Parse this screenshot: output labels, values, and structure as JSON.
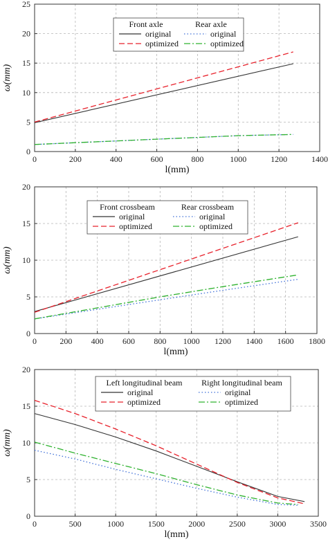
{
  "chart_data": [
    {
      "type": "line",
      "xlabel": "l(mm)",
      "ylabel": "ω(mm)",
      "xlim": [
        0,
        1400
      ],
      "ylim": [
        0,
        25
      ],
      "xticks": [
        0,
        200,
        400,
        600,
        800,
        1000,
        1200,
        1400
      ],
      "yticks": [
        0,
        5,
        10,
        15,
        20,
        25
      ],
      "grid": true,
      "legend": {
        "position": "top-center",
        "groups": [
          "Front axle",
          "Rear axle"
        ]
      },
      "series": [
        {
          "group": "Front axle",
          "name": "original",
          "style": "solid",
          "color": "#333333",
          "x": [
            0,
            1270
          ],
          "y": [
            4.9,
            14.9
          ]
        },
        {
          "group": "Front axle",
          "name": "optimized",
          "style": "dashed",
          "color": "#e8212b",
          "x": [
            0,
            1270
          ],
          "y": [
            5.0,
            16.9
          ]
        },
        {
          "group": "Rear axle",
          "name": "original",
          "style": "dotted",
          "color": "#3f6fd8",
          "x": [
            0,
            200,
            400,
            600,
            800,
            1000,
            1270
          ],
          "y": [
            1.2,
            1.5,
            1.8,
            2.1,
            2.4,
            2.7,
            2.9
          ]
        },
        {
          "group": "Rear axle",
          "name": "optimized",
          "style": "dashdot",
          "color": "#2fb22f",
          "x": [
            0,
            200,
            400,
            600,
            800,
            1000,
            1270
          ],
          "y": [
            1.2,
            1.5,
            1.8,
            2.1,
            2.4,
            2.7,
            2.9
          ]
        }
      ]
    },
    {
      "type": "line",
      "xlabel": "l(mm)",
      "ylabel": "ω(mm)",
      "xlim": [
        0,
        1800
      ],
      "ylim": [
        0,
        20
      ],
      "xticks": [
        0,
        200,
        400,
        600,
        800,
        1000,
        1200,
        1400,
        1600,
        1800
      ],
      "yticks": [
        0,
        5,
        10,
        15,
        20
      ],
      "grid": true,
      "legend": {
        "position": "top-left",
        "groups": [
          "Front crossbeam",
          "Rear crossbeam"
        ]
      },
      "series": [
        {
          "group": "Front crossbeam",
          "name": "original",
          "style": "solid",
          "color": "#333333",
          "x": [
            0,
            1680
          ],
          "y": [
            3.0,
            13.2
          ]
        },
        {
          "group": "Front crossbeam",
          "name": "optimized",
          "style": "dashed",
          "color": "#e8212b",
          "x": [
            0,
            1680
          ],
          "y": [
            2.9,
            15.1
          ]
        },
        {
          "group": "Rear crossbeam",
          "name": "original",
          "style": "dotted",
          "color": "#3f6fd8",
          "x": [
            0,
            400,
            800,
            1200,
            1680
          ],
          "y": [
            2.0,
            3.3,
            4.6,
            5.9,
            7.4
          ]
        },
        {
          "group": "Rear crossbeam",
          "name": "optimized",
          "style": "dashdot",
          "color": "#2fb22f",
          "x": [
            0,
            400,
            800,
            1200,
            1680
          ],
          "y": [
            2.0,
            3.5,
            5.0,
            6.4,
            8.0
          ]
        }
      ]
    },
    {
      "type": "line",
      "xlabel": "l(mm)",
      "ylabel": "ω(mm)",
      "xlim": [
        0,
        3500
      ],
      "ylim": [
        0,
        20
      ],
      "xticks": [
        0,
        500,
        1000,
        1500,
        2000,
        2500,
        3000,
        3500
      ],
      "yticks": [
        0,
        5,
        10,
        15,
        20
      ],
      "grid": true,
      "legend": {
        "position": "top-right",
        "groups": [
          "Left longitudinal beam",
          "Right longitudinal beam"
        ]
      },
      "series": [
        {
          "group": "Left longitudinal beam",
          "name": "original",
          "style": "solid",
          "color": "#333333",
          "x": [
            0,
            500,
            1000,
            1500,
            2000,
            2500,
            3000,
            3330
          ],
          "y": [
            14.0,
            12.5,
            10.8,
            8.9,
            6.8,
            4.7,
            2.7,
            2.0
          ]
        },
        {
          "group": "Left longitudinal beam",
          "name": "optimized",
          "style": "dashed",
          "color": "#e8212b",
          "x": [
            0,
            500,
            1000,
            1500,
            2000,
            2500,
            3000,
            3330
          ],
          "y": [
            15.8,
            14.0,
            11.9,
            9.6,
            7.1,
            4.6,
            2.5,
            1.7
          ]
        },
        {
          "group": "Right longitudinal beam",
          "name": "original",
          "style": "dotted",
          "color": "#3f6fd8",
          "x": [
            0,
            500,
            1000,
            1500,
            2000,
            2500,
            3000,
            3250
          ],
          "y": [
            9.0,
            7.8,
            6.4,
            5.1,
            3.8,
            2.6,
            1.6,
            1.5
          ]
        },
        {
          "group": "Right longitudinal beam",
          "name": "optimized",
          "style": "dashdot",
          "color": "#2fb22f",
          "x": [
            0,
            500,
            1000,
            1500,
            2000,
            2500,
            3000,
            3250
          ],
          "y": [
            10.1,
            8.6,
            7.2,
            5.8,
            4.3,
            2.9,
            1.8,
            1.6
          ]
        }
      ]
    }
  ]
}
